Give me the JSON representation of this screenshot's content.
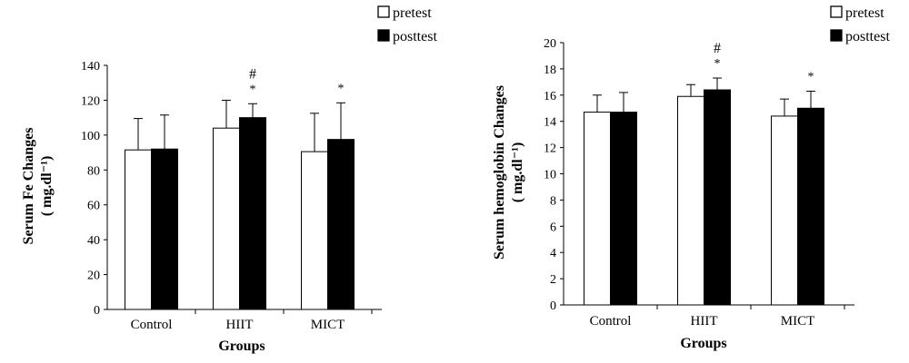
{
  "chart_data": [
    {
      "type": "bar",
      "title": "",
      "ylabel_line1": "Serum Fe Changes",
      "ylabel_line2": "( mg.dl⁻¹)",
      "xlabel": "Groups",
      "categories": [
        "Control",
        "HIIT",
        "MICT"
      ],
      "ylim": [
        0,
        140
      ],
      "yticks": [
        0,
        20,
        40,
        60,
        80,
        100,
        120,
        140
      ],
      "legend_position": "top-right",
      "grid": false,
      "series": [
        {
          "name": "pretest",
          "values": [
            91.5,
            104,
            90.5
          ],
          "errors": [
            18,
            16,
            22
          ],
          "color": "#ffffff"
        },
        {
          "name": "posttest",
          "values": [
            92,
            110,
            97.5
          ],
          "errors": [
            19.5,
            8,
            21
          ],
          "color": "#000000"
        }
      ],
      "annotations": [
        {
          "category": "HIIT",
          "star": "*",
          "hash": "#"
        },
        {
          "category": "MICT",
          "star": "*",
          "hash": ""
        }
      ]
    },
    {
      "type": "bar",
      "title": "",
      "ylabel_line1": "Serum hemoglobin Changes",
      "ylabel_line2": "( mg.dl⁻¹)",
      "xlabel": "Groups",
      "categories": [
        "Control",
        "HIIT",
        "MICT"
      ],
      "ylim": [
        0,
        20
      ],
      "yticks": [
        0,
        2,
        4,
        6,
        8,
        10,
        12,
        14,
        16,
        18,
        20
      ],
      "legend_position": "top-right",
      "grid": false,
      "series": [
        {
          "name": "pretest",
          "values": [
            14.7,
            15.9,
            14.4
          ],
          "errors": [
            1.3,
            0.9,
            1.3
          ],
          "color": "#ffffff"
        },
        {
          "name": "posttest",
          "values": [
            14.7,
            16.4,
            15.0
          ],
          "errors": [
            1.5,
            0.9,
            1.3
          ],
          "color": "#000000"
        }
      ],
      "annotations": [
        {
          "category": "HIIT",
          "star": "*",
          "hash": "#"
        },
        {
          "category": "MICT",
          "star": "*",
          "hash": ""
        }
      ]
    }
  ]
}
